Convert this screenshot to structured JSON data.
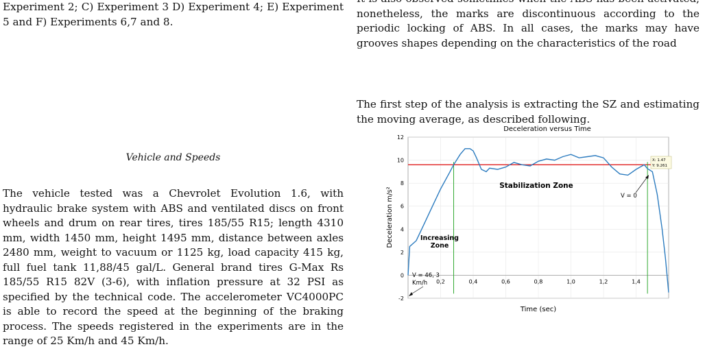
{
  "left": {
    "caption": "Experiment 2; C) Experiment 3 D) Experiment 4; E) Experiment 5 and F) Experiments 6,7 and 8.",
    "heading": "Vehicle and Speeds",
    "paragraph": "The vehicle tested was a Chevrolet Evolution 1.6, with hydraulic brake system with ABS and ventilated discs on front wheels and drum on rear tires, tires 185/55 R15; length 4310 mm, width 1450 mm, height 1495 mm, distance between axles 2480 mm, weight to vacuum or 1125 kg, load capacity 415 kg, full fuel tank 11,88/45 gal/L. General brand tires G-Max Rs 185/55 R15 82V (3-6), with inflation pressure at 32 PSI as specified by the technical code. The accelerometer VC4000PC is able to record the speed at the beginning of the braking process. The speeds registered in the experiments are in the range of 25 Km/h and 45 Km/h."
  },
  "right": {
    "paragraph1": "It is also observed sometimes when the ABS has been activated, nonetheless, the marks are discontinuous according to the periodic locking of ABS. In all cases, the marks may have grooves shapes depending on the characteristics of the road",
    "paragraph2": "The first step of the analysis is extracting the SZ and estimating the moving average, as described following."
  },
  "chart_data": {
    "type": "line",
    "title": "Deceleration versus Time",
    "xlabel": "Time (sec)",
    "ylabel": "Deceleration m/s²",
    "xlim": [
      0,
      1.6
    ],
    "ylim": [
      -2,
      12
    ],
    "x_ticks": [
      "0,2",
      "0,4",
      "0,6",
      "0,8",
      "1,0",
      "1,2",
      "1,4"
    ],
    "y_ticks": [
      "-2",
      "0",
      "2",
      "4",
      "6",
      "8",
      "10",
      "12"
    ],
    "series": [
      {
        "color": "#2b7bbf",
        "x": [
          0,
          0.01,
          0.05,
          0.1,
          0.15,
          0.2,
          0.25,
          0.28,
          0.32,
          0.35,
          0.38,
          0.4,
          0.42,
          0.45,
          0.48,
          0.5,
          0.55,
          0.6,
          0.65,
          0.7,
          0.75,
          0.8,
          0.85,
          0.9,
          0.95,
          1.0,
          1.05,
          1.1,
          1.15,
          1.2,
          1.25,
          1.3,
          1.35,
          1.4,
          1.45,
          1.47,
          1.5,
          1.53,
          1.56,
          1.58,
          1.6
        ],
        "y": [
          0,
          2.5,
          3.0,
          4.5,
          6.0,
          7.5,
          8.8,
          9.6,
          10.5,
          11.0,
          11.0,
          10.8,
          10.2,
          9.2,
          9.0,
          9.3,
          9.2,
          9.4,
          9.8,
          9.6,
          9.5,
          9.9,
          10.1,
          10.0,
          10.3,
          10.5,
          10.2,
          10.3,
          10.4,
          10.2,
          9.4,
          8.8,
          8.7,
          9.2,
          9.6,
          9.261,
          9.0,
          7.0,
          4.0,
          1.5,
          -1.5
        ]
      }
    ],
    "threshold": {
      "y": 9.6,
      "color": "#e02020"
    },
    "markers": {
      "x": [
        0.28,
        1.47
      ],
      "color": "#33aa33"
    },
    "annotations": {
      "stabilization": "Stabilization Zone",
      "increasing_line1": "Increasing",
      "increasing_line2": "Zone",
      "v_start_line1": "V = 46, 3",
      "v_start_line2": "Km/h",
      "v_end": "V = 0",
      "datatip_x": "X: 1.47",
      "datatip_y": "Y: 9.261"
    }
  }
}
